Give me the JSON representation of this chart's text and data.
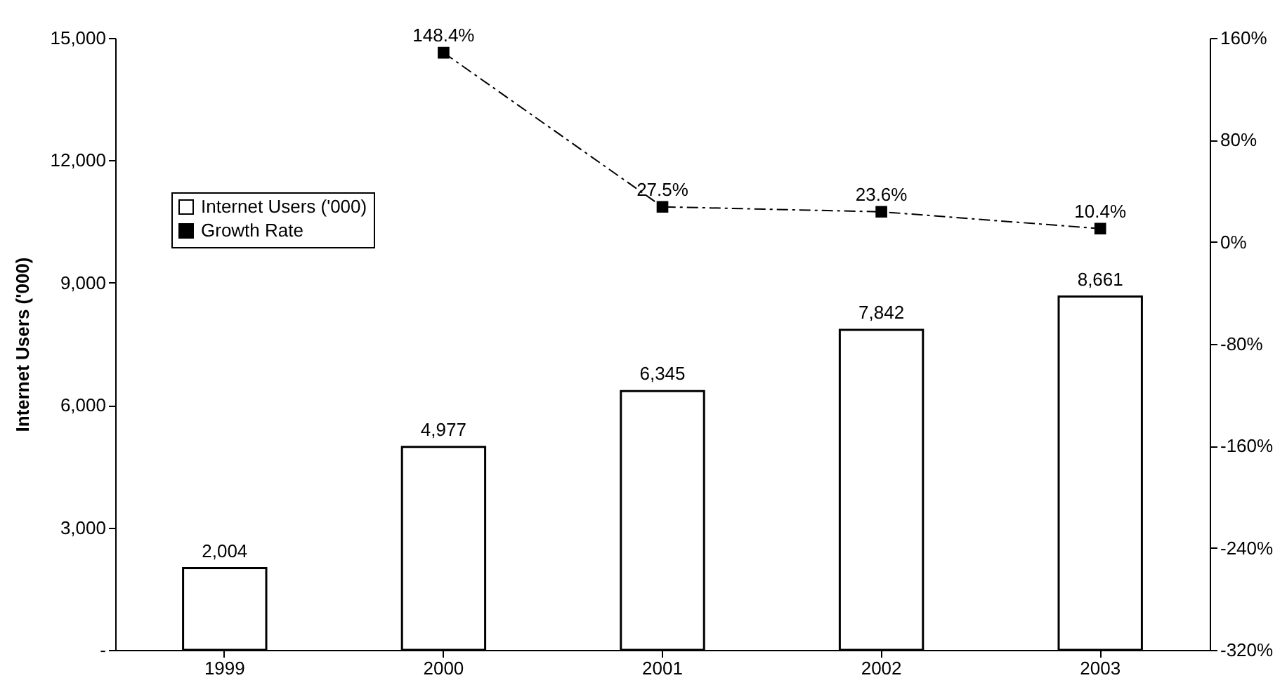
{
  "chart_data": {
    "type": "bar",
    "categories": [
      "1999",
      "2000",
      "2001",
      "2002",
      "2003"
    ],
    "ylabel": "Internet Users ('000)",
    "ylim": [
      0,
      15000
    ],
    "yticks": [
      {
        "value": 0,
        "label": "-"
      },
      {
        "value": 3000,
        "label": "3,000"
      },
      {
        "value": 6000,
        "label": "6,000"
      },
      {
        "value": 9000,
        "label": "9,000"
      },
      {
        "value": 12000,
        "label": "12,000"
      },
      {
        "value": 15000,
        "label": "15,000"
      }
    ],
    "y2lim": [
      -320,
      160
    ],
    "y2ticks": [
      {
        "value": -320,
        "label": "-320%"
      },
      {
        "value": -240,
        "label": "-240%"
      },
      {
        "value": -160,
        "label": "-160%"
      },
      {
        "value": -80,
        "label": "-80%"
      },
      {
        "value": 0,
        "label": "0%"
      },
      {
        "value": 80,
        "label": "80%"
      },
      {
        "value": 160,
        "label": "160%"
      }
    ],
    "series": [
      {
        "name": "Internet Users ('000)",
        "color": "#ffffff",
        "values": [
          2004,
          4977,
          6345,
          7842,
          8661
        ],
        "value_labels": [
          "2,004",
          "4,977",
          "6,345",
          "7,842",
          "8,661"
        ]
      },
      {
        "name": "Growth Rate",
        "type": "line",
        "axis": "y2",
        "color": "#000000",
        "marker": "square",
        "line_style": "dashed",
        "values": [
          null,
          148.4,
          27.5,
          23.6,
          10.4
        ],
        "value_labels": [
          null,
          "148.4%",
          "27.5%",
          "23.6%",
          "10.4%"
        ]
      }
    ],
    "legend": "top left",
    "grid": false
  }
}
